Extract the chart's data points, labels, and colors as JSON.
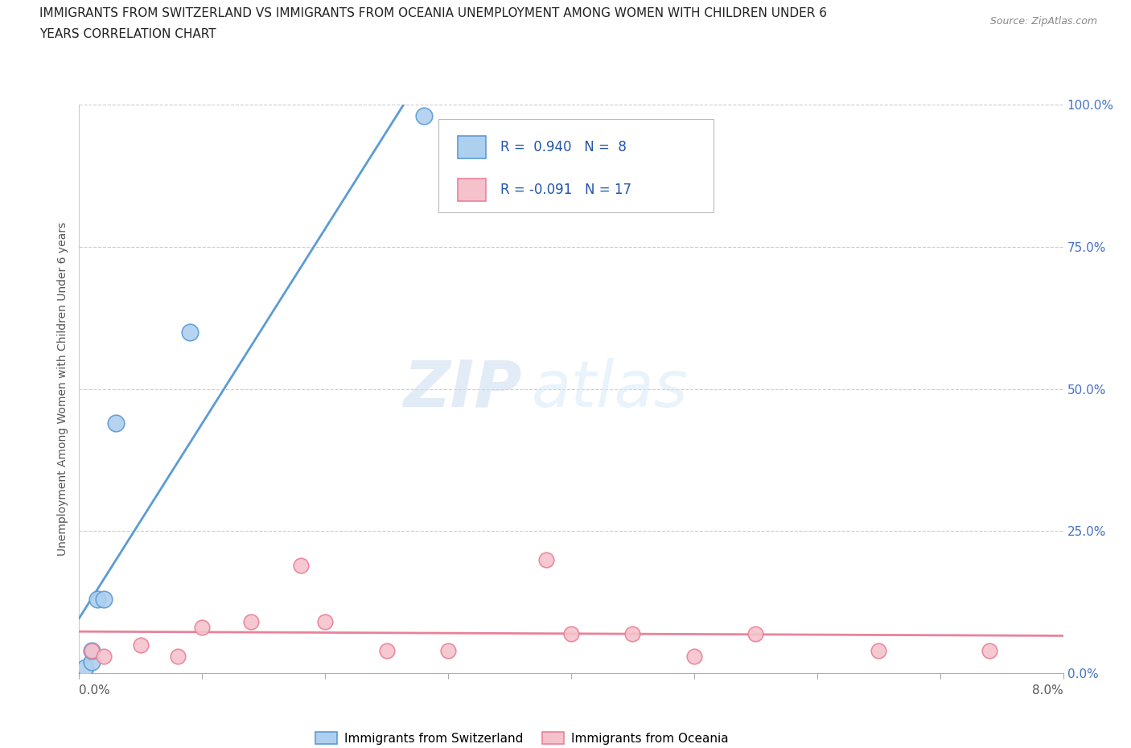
{
  "title_line1": "IMMIGRANTS FROM SWITZERLAND VS IMMIGRANTS FROM OCEANIA UNEMPLOYMENT AMONG WOMEN WITH CHILDREN UNDER 6",
  "title_line2": "YEARS CORRELATION CHART",
  "source": "Source: ZipAtlas.com",
  "ylabel": "Unemployment Among Women with Children Under 6 years",
  "ytick_values": [
    0,
    0.25,
    0.5,
    0.75,
    1.0
  ],
  "ytick_labels": [
    "0.0%",
    "25.0%",
    "50.0%",
    "75.0%",
    "100.0%"
  ],
  "xlim": [
    0,
    0.08
  ],
  "ylim": [
    0,
    1.0
  ],
  "switzerland_x": [
    0.0005,
    0.001,
    0.001,
    0.0015,
    0.002,
    0.003,
    0.009,
    0.028
  ],
  "switzerland_y": [
    0.01,
    0.02,
    0.04,
    0.13,
    0.13,
    0.44,
    0.6,
    0.98
  ],
  "oceania_x": [
    0.001,
    0.002,
    0.005,
    0.008,
    0.01,
    0.014,
    0.018,
    0.02,
    0.025,
    0.03,
    0.038,
    0.04,
    0.045,
    0.05,
    0.055,
    0.065,
    0.074
  ],
  "oceania_y": [
    0.04,
    0.03,
    0.05,
    0.03,
    0.08,
    0.09,
    0.19,
    0.09,
    0.04,
    0.04,
    0.2,
    0.07,
    0.07,
    0.03,
    0.07,
    0.04,
    0.04
  ],
  "blue_color": "#5b9bd5",
  "blue_fill": "#aed0ef",
  "pink_color": "#e8829a",
  "pink_fill": "#f5c2cc",
  "r_swiss": 0.94,
  "n_swiss": 8,
  "r_oceania": -0.091,
  "n_oceania": 17,
  "legend_label_swiss": "Immigrants from Switzerland",
  "legend_label_oceania": "Immigrants from Oceania",
  "watermark_zip": "ZIP",
  "watermark_atlas": "atlas",
  "background_color": "#ffffff",
  "grid_color": "#cccccc"
}
